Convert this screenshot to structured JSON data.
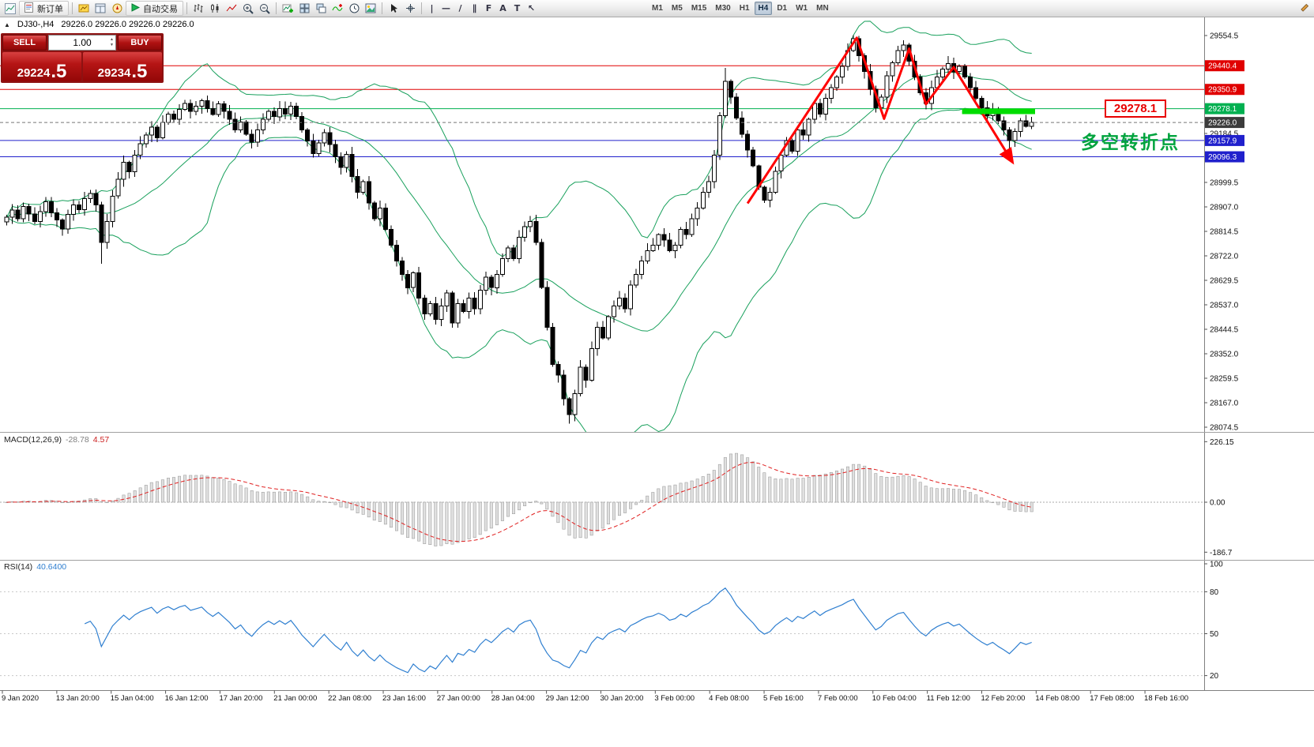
{
  "toolbar": {
    "new_order_label": "新订单",
    "autotrade_label": "自动交易",
    "timeframes": [
      "M1",
      "M5",
      "M15",
      "M30",
      "H1",
      "H4",
      "D1",
      "W1",
      "MN"
    ],
    "active_timeframe": "H4",
    "tools": {
      "vline": "|",
      "hline": "—",
      "trend": "/",
      "channel": "∥",
      "fibo": "F",
      "text": "A",
      "label": "T",
      "arrow": "↖"
    }
  },
  "symbol_header": {
    "collapse_glyph": "▲",
    "symbol": "DJ30-,H4",
    "ohlc": "29226.0 29226.0 29226.0 29226.0"
  },
  "trade_panel": {
    "sell_label": "SELL",
    "buy_label": "BUY",
    "volume": "1.00",
    "sell_price_int": "29224",
    "sell_price_frac": ".5",
    "buy_price_int": "29234",
    "buy_price_frac": ".5"
  },
  "indicator_labels": {
    "macd_name": "MACD(12,26,9)",
    "macd_main": "-28.78",
    "macd_signal": "4.57",
    "rsi_name": "RSI(14)",
    "rsi_value": "40.6400"
  },
  "annotations": {
    "turning_point": {
      "text": "多空转折点",
      "color": "#00a33e"
    },
    "price_box": {
      "value": "29278.1",
      "color": "#e80000"
    },
    "trend_zigzag": {
      "color": "#ff0000",
      "points": [
        [
          133,
          28920
        ],
        [
          152.6,
          29546
        ],
        [
          157.5,
          29240
        ],
        [
          162,
          29505
        ],
        [
          165,
          29295
        ],
        [
          170,
          29435
        ],
        [
          180.5,
          29078
        ]
      ]
    },
    "breakout_bar": {
      "color": "#00dd00",
      "i1": 171.5,
      "i2": 184.6,
      "price": 29268,
      "thickness": 7
    }
  },
  "chart_data": [
    {
      "type": "candlestick",
      "title": "DJ30-,H4",
      "ylim": [
        28074.5,
        29554.5
      ],
      "y_ticks_plain": [
        "29554.5",
        "29184.5",
        "28999.5",
        "28907.0",
        "28814.5",
        "28722.0",
        "28629.5",
        "28537.0",
        "28444.5",
        "28352.0",
        "28259.5",
        "28167.0",
        "28074.5"
      ],
      "x_axis_labels": [
        "9 Jan 2020",
        "13 Jan 20:00",
        "15 Jan 04:00",
        "16 Jan 12:00",
        "17 Jan 20:00",
        "21 Jan 00:00",
        "22 Jan 08:00",
        "23 Jan 16:00",
        "27 Jan 00:00",
        "28 Jan 04:00",
        "29 Jan 12:00",
        "30 Jan 20:00",
        "3 Feb 00:00",
        "4 Feb 08:00",
        "5 Feb 16:00",
        "7 Feb 00:00",
        "10 Feb 04:00",
        "11 Feb 12:00",
        "12 Feb 20:00",
        "14 Feb 08:00",
        "17 Feb 08:00",
        "18 Feb 16:00"
      ],
      "first_open": 28850,
      "closes": [
        28868,
        28895,
        28862,
        28908,
        28880,
        28851,
        28889,
        28927,
        28885,
        28858,
        28824,
        28878,
        28915,
        28897,
        28938,
        28958,
        28915,
        28772,
        28852,
        28948,
        29012,
        29076,
        29040,
        29102,
        29146,
        29178,
        29208,
        29168,
        29226,
        29258,
        29238,
        29276,
        29298,
        29268,
        29288,
        29308,
        29278,
        29256,
        29296,
        29268,
        29238,
        29198,
        29228,
        29182,
        29152,
        29198,
        29238,
        29268,
        29248,
        29278,
        29258,
        29288,
        29248,
        29198,
        29156,
        29108,
        29148,
        29188,
        29142,
        29096,
        29056,
        29106,
        29022,
        28962,
        29002,
        28922,
        28862,
        28902,
        28822,
        28762,
        28702,
        28652,
        28602,
        28658,
        28562,
        28502,
        28542,
        28482,
        28532,
        28582,
        28468,
        28542,
        28512,
        28562,
        28522,
        28592,
        28642,
        28602,
        28652,
        28712,
        28752,
        28712,
        28792,
        28832,
        28852,
        28772,
        28602,
        28452,
        28312,
        28272,
        28182,
        28122,
        28202,
        28302,
        28252,
        28372,
        28452,
        28412,
        28492,
        28532,
        28562,
        28522,
        28612,
        28652,
        28702,
        28742,
        28762,
        28802,
        28782,
        28742,
        28762,
        28822,
        28802,
        28862,
        28902,
        28962,
        29002,
        29102,
        29252,
        29382,
        29322,
        29242,
        29182,
        29122,
        29062,
        28982,
        28932,
        28962,
        29042,
        29102,
        29158,
        29118,
        29198,
        29178,
        29238,
        29298,
        29258,
        29318,
        29358,
        29398,
        29438,
        29498,
        29542,
        29478,
        29418,
        29352,
        29282,
        29322,
        29402,
        29452,
        29498,
        29518,
        29458,
        29398,
        29338,
        29298,
        29358,
        29398,
        29428,
        29448,
        29418,
        29438,
        29398,
        29358,
        29318,
        29282,
        29252,
        29272,
        29232,
        29198,
        29158,
        29192,
        29232,
        29212,
        29226
      ],
      "wick_overrides": {
        "17": {
          "low": 28692
        },
        "101": {
          "low": 28088
        },
        "129": {
          "high": 29432
        },
        "152": {
          "high": 29556
        },
        "161": {
          "high": 29536
        },
        "180": {
          "low": 29098
        }
      },
      "bollinger": {
        "period": 20,
        "deviation": 2,
        "color": "#18a05c"
      },
      "hlines": [
        {
          "price": 29440.4,
          "color": "#e00000",
          "label": "29440.4"
        },
        {
          "price": 29350.9,
          "color": "#e00000",
          "label": "29350.9"
        },
        {
          "price": 29278.1,
          "color": "#00b050",
          "label": "29278.1"
        },
        {
          "price": 29157.9,
          "color": "#2020cc",
          "label": "29157.9"
        },
        {
          "price": 29096.3,
          "color": "#2020cc",
          "label": "29096.3"
        }
      ],
      "current_price": {
        "value": 29226.0,
        "label": "29226.0",
        "tag_color": "#3c3c3c"
      }
    },
    {
      "type": "bar",
      "label": "MACD(12,26,9)",
      "params": {
        "fast": 12,
        "slow": 26,
        "signal": 9
      },
      "value_main": "-28.78",
      "value_signal": "4.57",
      "y_ticks": [
        "226.15",
        "0.00",
        "-186.7"
      ],
      "histogram_fill": "#e0e0e0",
      "histogram_stroke": "#a0a0a0",
      "signal_color": "#e02020",
      "derived_from": "closes of chart 0"
    },
    {
      "type": "line",
      "label": "RSI(14)",
      "params": {
        "period": 14
      },
      "value": "40.6400",
      "y_ticks": [
        "100",
        "80",
        "50",
        "20"
      ],
      "levels": [
        80,
        50,
        20
      ],
      "line_color": "#2f7fd0",
      "derived_from": "closes of chart 0"
    }
  ]
}
